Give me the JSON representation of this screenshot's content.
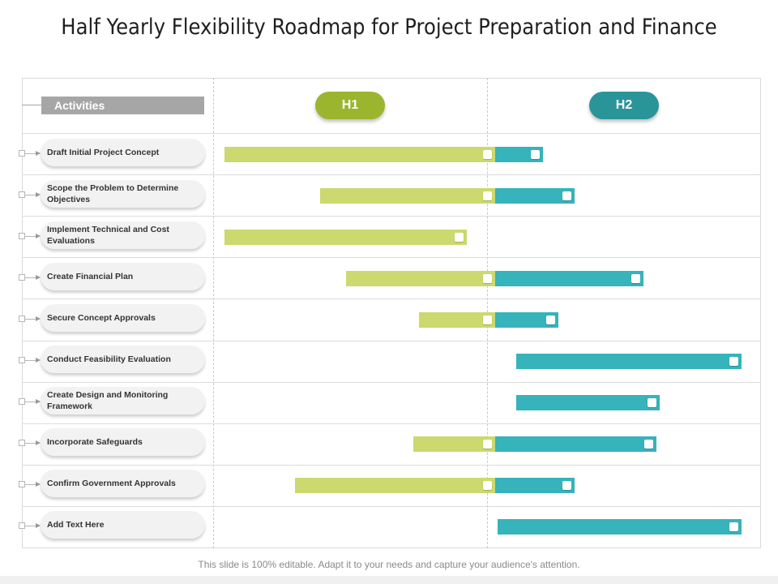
{
  "title": "Half Yearly Flexibility Roadmap for Project Preparation and Finance",
  "activities_header": "Activities",
  "periods": [
    {
      "label": "H1",
      "color": "#9bb52e"
    },
    {
      "label": "H2",
      "color": "#2a9598"
    }
  ],
  "bar_colors": {
    "h1": "#cbd96e",
    "h2": "#36b3bb"
  },
  "scale": {
    "start": 0,
    "mid": 1,
    "end": 2,
    "unit": "half-year"
  },
  "activities": [
    {
      "label": "Draft Initial Project Concept",
      "start": 0.04,
      "end": 1.18
    },
    {
      "label": "Scope the Problem to Determine Objectives",
      "start": 0.38,
      "end": 1.3
    },
    {
      "label": "Implement Technical and Cost Evaluations",
      "start": 0.04,
      "end": 0.9
    },
    {
      "label": "Create Financial Plan",
      "start": 0.47,
      "end": 1.56
    },
    {
      "label": "Secure Concept Approvals",
      "start": 0.73,
      "end": 1.24
    },
    {
      "label": "Conduct Feasibility Evaluation",
      "start": 1.08,
      "end": 1.93
    },
    {
      "label": "Create Design and Monitoring Framework",
      "start": 1.08,
      "end": 1.62
    },
    {
      "label": "Incorporate Safeguards",
      "start": 0.71,
      "end": 1.61
    },
    {
      "label": "Confirm Government Approvals",
      "start": 0.29,
      "end": 1.3
    },
    {
      "label": "Add Text Here",
      "start": 1.01,
      "end": 1.93
    }
  ],
  "footer": "This slide is 100% editable. Adapt it to your needs and capture your audience's attention."
}
